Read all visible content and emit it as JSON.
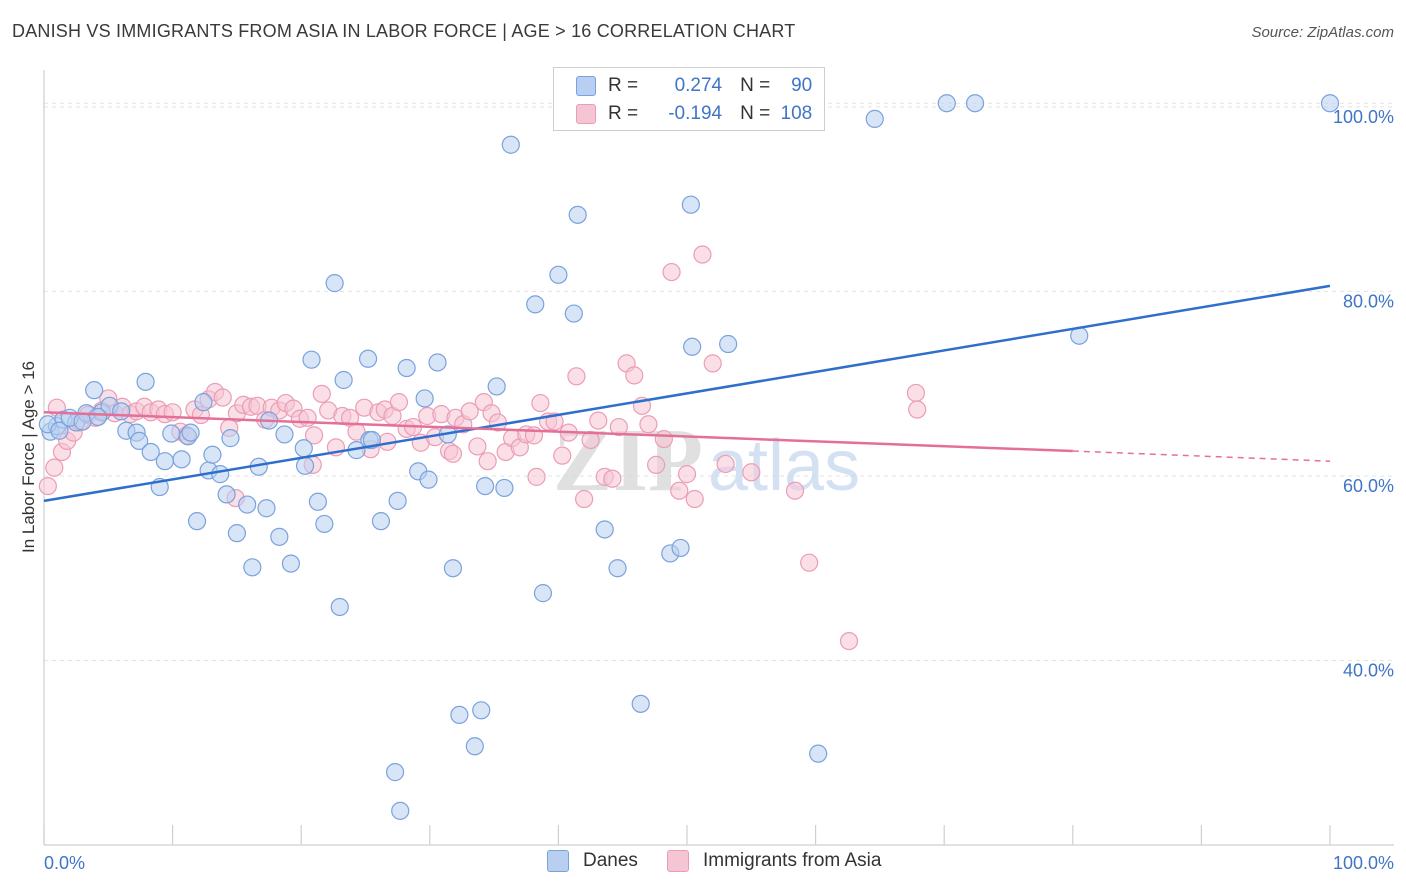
{
  "title": "DANISH VS IMMIGRANTS FROM ASIA IN LABOR FORCE | AGE > 16 CORRELATION CHART",
  "source": "Source: ZipAtlas.com",
  "watermark": {
    "zip": "ZIP",
    "atlas": "atlas"
  },
  "colors": {
    "danes_fill": "#b8cff1",
    "danes_stroke": "#7aa2dd",
    "danes_line": "#2f6fcc",
    "asia_fill": "#f6c5d4",
    "asia_stroke": "#eb9db6",
    "asia_line": "#e46f98",
    "tick_text": "#3f75c6",
    "grid": "#e3e3e3"
  },
  "legend_stats": [
    {
      "r_label": "R =",
      "r_value": "0.274",
      "n_label": "N =",
      "n_value": "90"
    },
    {
      "r_label": "R =",
      "r_value": "-0.194",
      "n_label": "N =",
      "n_value": "108"
    }
  ],
  "chart_data": {
    "type": "scatter",
    "title": "DANISH VS IMMIGRANTS FROM ASIA IN LABOR FORCE | AGE > 16 CORRELATION CHART",
    "xlabel": "",
    "ylabel": "In Labor Force | Age > 16",
    "xlim": [
      0,
      100
    ],
    "ylim": [
      20,
      104
    ],
    "x_tick_labels": [
      "0.0%",
      "100.0%"
    ],
    "y_ticks": [
      40,
      60,
      80,
      100
    ],
    "y_tick_labels": [
      "40.0%",
      "60.0%",
      "80.0%",
      "100.0%"
    ],
    "grid": true,
    "legend_position": "bottom",
    "series": [
      {
        "name": "Danes",
        "r": 0.274,
        "n": 90,
        "trend": {
          "x": [
            0,
            100
          ],
          "y": [
            57.3,
            80.6
          ]
        },
        "points": [
          [
            0.5,
            64.8
          ],
          [
            1,
            65.4
          ],
          [
            1.5,
            66.1
          ],
          [
            2.5,
            65.8
          ],
          [
            3.3,
            66.8
          ],
          [
            3.9,
            69.3
          ],
          [
            4.5,
            66.9
          ],
          [
            5.1,
            67.6
          ],
          [
            6,
            67.0
          ],
          [
            6.4,
            64.9
          ],
          [
            7.2,
            64.7
          ],
          [
            7.4,
            63.8
          ],
          [
            7.9,
            70.2
          ],
          [
            8.3,
            62.6
          ],
          [
            9,
            58.8
          ],
          [
            9.4,
            61.6
          ],
          [
            9.9,
            64.6
          ],
          [
            10.7,
            61.8
          ],
          [
            11.2,
            64.3
          ],
          [
            11.4,
            64.7
          ],
          [
            11.9,
            55.1
          ],
          [
            12.4,
            68.0
          ],
          [
            12.8,
            60.6
          ],
          [
            13.1,
            62.3
          ],
          [
            13.7,
            60.2
          ],
          [
            14.2,
            58.0
          ],
          [
            14.5,
            64.1
          ],
          [
            15,
            53.8
          ],
          [
            15.8,
            56.9
          ],
          [
            16.2,
            50.1
          ],
          [
            16.7,
            61.0
          ],
          [
            17.3,
            56.5
          ],
          [
            17.5,
            66.0
          ],
          [
            18.3,
            53.4
          ],
          [
            18.7,
            64.5
          ],
          [
            19.2,
            50.5
          ],
          [
            20.2,
            63.0
          ],
          [
            20.3,
            61.1
          ],
          [
            20.8,
            72.6
          ],
          [
            21.3,
            57.2
          ],
          [
            21.8,
            54.8
          ],
          [
            22.6,
            80.9
          ],
          [
            23.0,
            45.8
          ],
          [
            23.3,
            70.4
          ],
          [
            24.3,
            62.8
          ],
          [
            25.2,
            72.7
          ],
          [
            25.3,
            63.9
          ],
          [
            25.5,
            63.9
          ],
          [
            26.2,
            55.1
          ],
          [
            27.3,
            27.9
          ],
          [
            27.5,
            57.3
          ],
          [
            27.7,
            23.7
          ],
          [
            28.2,
            71.7
          ],
          [
            29.1,
            60.5
          ],
          [
            29.6,
            68.4
          ],
          [
            29.9,
            59.6
          ],
          [
            30.6,
            72.3
          ],
          [
            31.4,
            64.5
          ],
          [
            31.8,
            50.0
          ],
          [
            32.3,
            34.1
          ],
          [
            33.5,
            30.7
          ],
          [
            34.0,
            34.6
          ],
          [
            34.3,
            58.9
          ],
          [
            35.2,
            69.7
          ],
          [
            35.8,
            58.7
          ],
          [
            36.3,
            95.9
          ],
          [
            38.2,
            78.6
          ],
          [
            38.8,
            47.3
          ],
          [
            40.0,
            81.8
          ],
          [
            41.2,
            77.6
          ],
          [
            41.5,
            88.3
          ],
          [
            43.6,
            54.2
          ],
          [
            44.6,
            50.0
          ],
          [
            46.4,
            35.3
          ],
          [
            48.7,
            51.6
          ],
          [
            49.5,
            52.2
          ],
          [
            50.4,
            74.0
          ],
          [
            50.3,
            89.4
          ],
          [
            53.2,
            74.3
          ],
          [
            60.2,
            29.9
          ],
          [
            64.6,
            98.7
          ],
          [
            70.2,
            100.4
          ],
          [
            72.4,
            100.4
          ],
          [
            80.5,
            75.2
          ],
          [
            100,
            100.4
          ],
          [
            0.3,
            65.6
          ],
          [
            1.2,
            64.9
          ],
          [
            2,
            66.3
          ],
          [
            3,
            65.9
          ],
          [
            4.2,
            66.4
          ]
        ]
      },
      {
        "name": "Immigrants from Asia",
        "r": -0.194,
        "n": 108,
        "trend": {
          "x": [
            0,
            80
          ],
          "y": [
            66.9,
            62.7
          ]
        },
        "trend_dashed": {
          "x": [
            80,
            100
          ],
          "y": [
            62.7,
            61.6
          ]
        },
        "points": [
          [
            0.3,
            58.9
          ],
          [
            0.8,
            60.9
          ],
          [
            1.4,
            62.6
          ],
          [
            1.8,
            63.8
          ],
          [
            2.3,
            64.7
          ],
          [
            2.8,
            65.8
          ],
          [
            3.4,
            66.6
          ],
          [
            4.0,
            66.3
          ],
          [
            4.5,
            67.1
          ],
          [
            5.0,
            68.4
          ],
          [
            5.5,
            66.8
          ],
          [
            6.1,
            67.5
          ],
          [
            6.7,
            66.7
          ],
          [
            7.2,
            67.0
          ],
          [
            7.8,
            67.5
          ],
          [
            8.3,
            66.9
          ],
          [
            8.9,
            67.2
          ],
          [
            9.4,
            66.7
          ],
          [
            10.0,
            66.9
          ],
          [
            10.6,
            64.8
          ],
          [
            11.1,
            64.4
          ],
          [
            11.7,
            67.2
          ],
          [
            12.2,
            66.6
          ],
          [
            12.8,
            68.3
          ],
          [
            13.3,
            69.1
          ],
          [
            13.9,
            68.5
          ],
          [
            14.4,
            65.2
          ],
          [
            15.0,
            66.8
          ],
          [
            15.5,
            67.7
          ],
          [
            16.1,
            67.5
          ],
          [
            16.6,
            67.6
          ],
          [
            17.2,
            66.1
          ],
          [
            17.7,
            67.4
          ],
          [
            18.3,
            67.1
          ],
          [
            18.8,
            67.9
          ],
          [
            19.4,
            67.3
          ],
          [
            19.9,
            66.2
          ],
          [
            20.5,
            66.3
          ],
          [
            21.0,
            64.4
          ],
          [
            21.6,
            68.9
          ],
          [
            22.1,
            67.1
          ],
          [
            22.7,
            63.1
          ],
          [
            23.2,
            66.5
          ],
          [
            23.8,
            66.3
          ],
          [
            24.3,
            64.8
          ],
          [
            24.9,
            67.4
          ],
          [
            25.4,
            62.9
          ],
          [
            26.0,
            66.9
          ],
          [
            26.5,
            67.2
          ],
          [
            27.1,
            66.5
          ],
          [
            27.6,
            68.0
          ],
          [
            28.2,
            65.1
          ],
          [
            28.7,
            65.3
          ],
          [
            29.3,
            63.6
          ],
          [
            29.8,
            66.5
          ],
          [
            30.4,
            64.2
          ],
          [
            30.9,
            66.7
          ],
          [
            31.5,
            62.7
          ],
          [
            32.0,
            66.3
          ],
          [
            32.6,
            65.6
          ],
          [
            33.1,
            67.0
          ],
          [
            33.7,
            63.2
          ],
          [
            34.2,
            68.0
          ],
          [
            34.8,
            66.8
          ],
          [
            35.3,
            65.8
          ],
          [
            35.9,
            62.6
          ],
          [
            36.4,
            64.1
          ],
          [
            37.0,
            63.1
          ],
          [
            37.5,
            64.5
          ],
          [
            38.1,
            64.4
          ],
          [
            38.6,
            67.9
          ],
          [
            39.2,
            65.9
          ],
          [
            39.7,
            65.9
          ],
          [
            40.3,
            62.2
          ],
          [
            40.8,
            64.7
          ],
          [
            41.4,
            70.8
          ],
          [
            42.0,
            57.5
          ],
          [
            42.5,
            63.9
          ],
          [
            43.1,
            66.0
          ],
          [
            43.6,
            59.9
          ],
          [
            44.2,
            59.7
          ],
          [
            44.7,
            65.3
          ],
          [
            45.3,
            72.2
          ],
          [
            45.9,
            70.9
          ],
          [
            46.5,
            67.6
          ],
          [
            47.0,
            65.6
          ],
          [
            47.6,
            61.2
          ],
          [
            48.2,
            64.0
          ],
          [
            48.8,
            82.1
          ],
          [
            49.4,
            58.4
          ],
          [
            50.0,
            60.2
          ],
          [
            50.6,
            57.5
          ],
          [
            51.2,
            84.0
          ],
          [
            52.0,
            72.2
          ],
          [
            53.0,
            61.3
          ],
          [
            58.4,
            58.4
          ],
          [
            59.5,
            50.6
          ],
          [
            62.6,
            42.1
          ],
          [
            67.8,
            69.0
          ],
          [
            67.9,
            67.2
          ],
          [
            14.9,
            57.6
          ],
          [
            20.9,
            61.2
          ],
          [
            26.7,
            63.7
          ],
          [
            31.8,
            62.4
          ],
          [
            34.5,
            61.6
          ],
          [
            38.3,
            59.9
          ],
          [
            55.0,
            60.4
          ],
          [
            1.0,
            67.4
          ]
        ]
      }
    ]
  },
  "bottom_legend": [
    "Danes",
    "Immigrants from Asia"
  ]
}
